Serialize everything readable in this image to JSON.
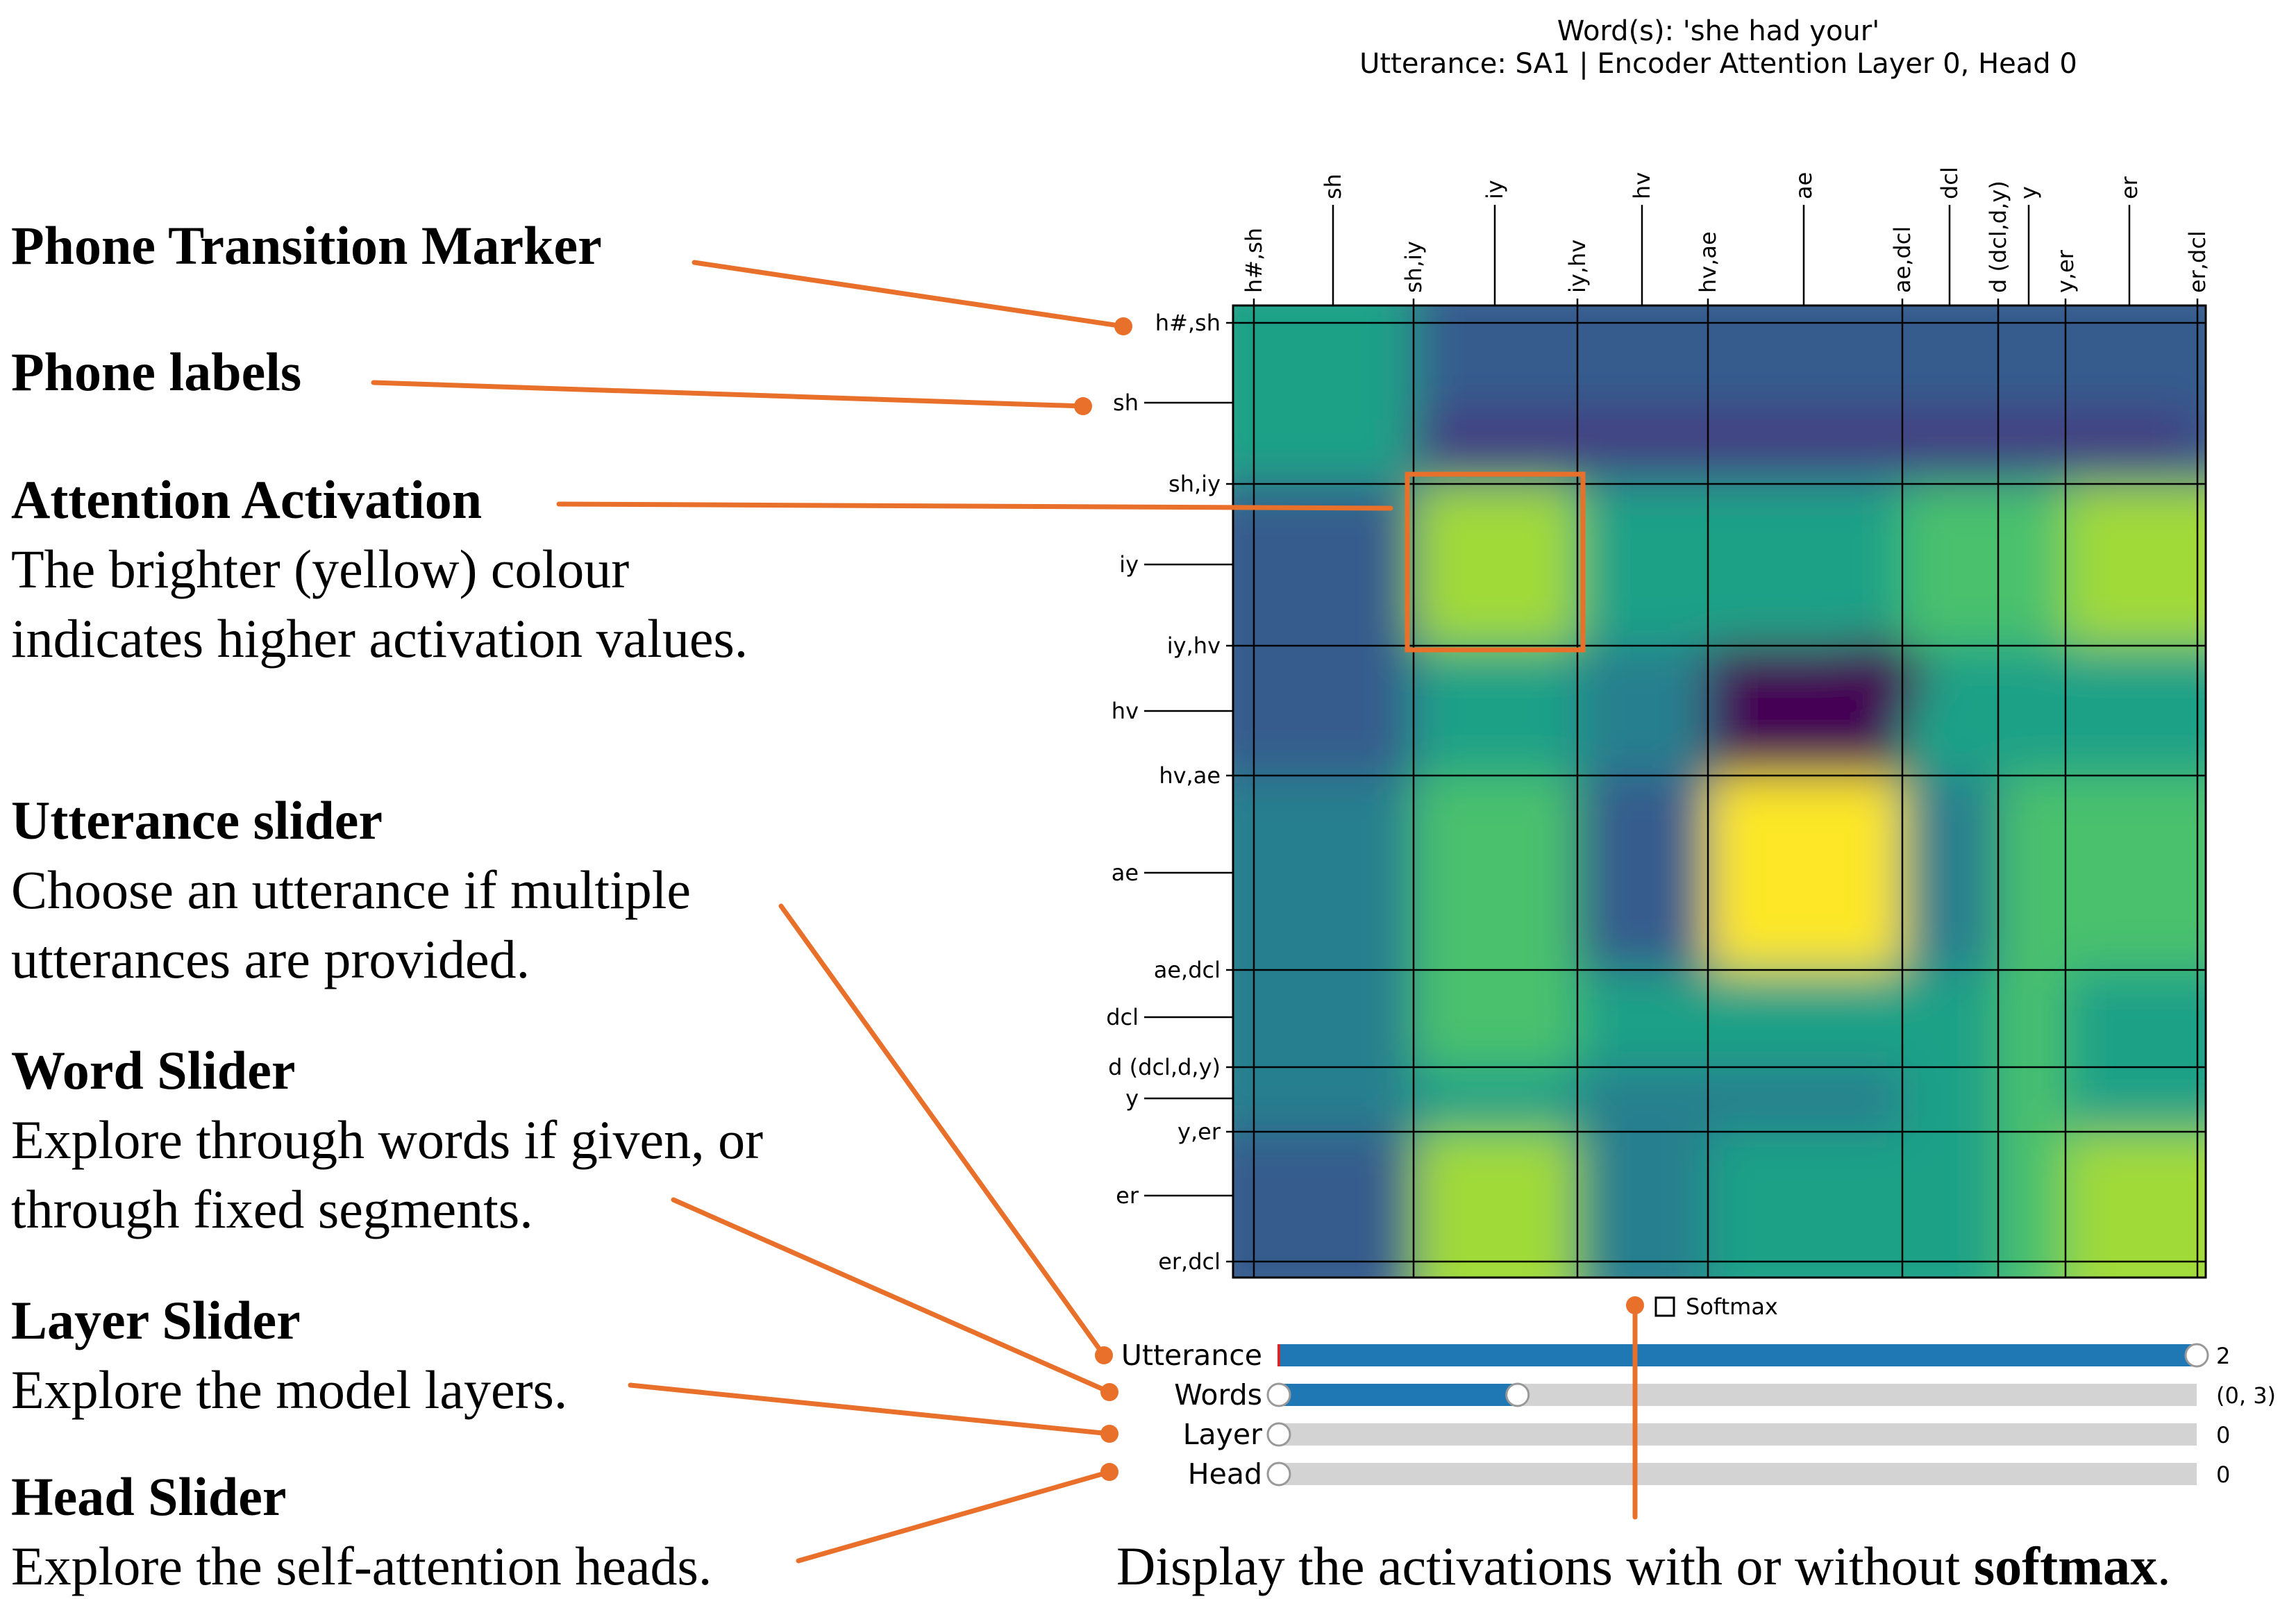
{
  "plot": {
    "title_line1": "Word(s): 'she had your'",
    "title_line2": "Utterance: SA1 | Encoder Attention Layer 0, Head 0",
    "colormap": "viridis",
    "transition_markers": [
      "h#,sh",
      "sh,iy",
      "iy,hv",
      "hv,ae",
      "ae,dcl",
      "d (dcl,d,y)",
      "y,er",
      "er,dcl"
    ],
    "phone_labels": [
      "sh",
      "iy",
      "hv",
      "ae",
      "dcl",
      "y",
      "er"
    ],
    "top_tick_labels": [
      "h#,sh",
      "sh",
      "sh,iy",
      "iy",
      "iy,hv",
      "hv",
      "hv,ae",
      "ae",
      "ae,dcl",
      "dcl",
      "d (dcl,d,y)",
      "y",
      "y,er",
      "er",
      "er,dcl"
    ],
    "left_tick_labels": [
      "h#,sh",
      "sh",
      "sh,iy",
      "iy",
      "iy,hv",
      "hv",
      "hv,ae",
      "ae",
      "ae,dcl",
      "dcl",
      "d (dcl,d,y)",
      "y",
      "y,er",
      "er",
      "er,dcl"
    ]
  },
  "controls": {
    "softmax": {
      "label": "Softmax",
      "checked": false
    },
    "sliders": [
      {
        "id": "utterance",
        "label": "Utterance",
        "value": "2",
        "range": [
          0,
          2
        ],
        "fill_from": 0,
        "fill_to": 1,
        "accent": "#1f77b4"
      },
      {
        "id": "words",
        "label": "Words",
        "value": "(0, 3)",
        "range": [
          0,
          12
        ],
        "fill_from": 0,
        "fill_to": 0.26,
        "accent": "#1f77b4"
      },
      {
        "id": "layer",
        "label": "Layer",
        "value": "0",
        "range": [
          0,
          11
        ],
        "fill_from": 0,
        "fill_to": 0,
        "accent": "#1f77b4"
      },
      {
        "id": "head",
        "label": "Head",
        "value": "0",
        "range": [
          0,
          11
        ],
        "fill_from": 0,
        "fill_to": 0,
        "accent": "#1f77b4"
      }
    ]
  },
  "annotations": {
    "accent_color": "#e8702a",
    "phone_transition_marker": {
      "title": "Phone Transition Marker"
    },
    "phone_labels": {
      "title": "Phone labels"
    },
    "attention_activation": {
      "title": "Attention Activation",
      "line1": "The brighter (yellow) colour",
      "line2": "indicates higher activation values."
    },
    "utterance_slider": {
      "title": "Utterance slider",
      "line1": "Choose an utterance if multiple",
      "line2": "utterances are provided."
    },
    "word_slider": {
      "title": "Word Slider",
      "line1": "Explore through words if given, or",
      "line2": "through fixed segments."
    },
    "layer_slider": {
      "title": "Layer Slider",
      "line1": "Explore the model layers."
    },
    "head_slider": {
      "title": "Head Slider",
      "line1": "Explore the self-attention heads."
    },
    "softmax_caption": {
      "prefix": "Display the activations with or without ",
      "bold": "softmax",
      "suffix": "."
    }
  }
}
